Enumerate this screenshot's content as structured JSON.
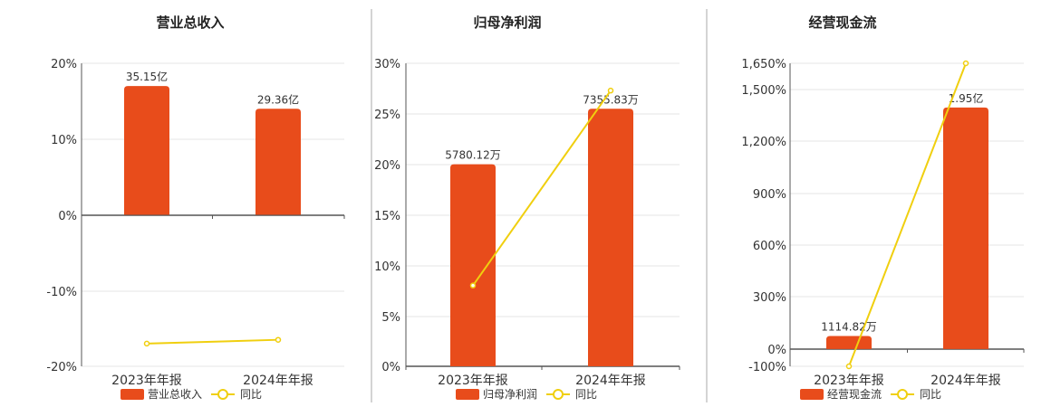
{
  "colors": {
    "bar": "#e84c1b",
    "line": "#f0cf0f",
    "axis": "#555555",
    "grid": "#e6e6e6",
    "divider": "#aaaaaa",
    "text": "#333333"
  },
  "chart_data": [
    {
      "type": "bar",
      "title": "营业总收入",
      "categories": [
        "2023年年报",
        "2024年年报"
      ],
      "series": [
        {
          "name": "营业总收入",
          "kind": "bar",
          "values": [
            0.17,
            0.14
          ],
          "value_labels": [
            "35.15亿",
            "29.36亿"
          ]
        },
        {
          "name": "同比",
          "kind": "line",
          "values": [
            -0.17,
            -0.165
          ]
        }
      ],
      "y_ticks": [
        "20%",
        "10%",
        "0%",
        "-10%",
        "-20%"
      ],
      "ylim": [
        -0.2,
        0.2
      ]
    },
    {
      "type": "bar",
      "title": "归母净利润",
      "categories": [
        "2023年年报",
        "2024年年报"
      ],
      "series": [
        {
          "name": "归母净利润",
          "kind": "bar",
          "values": [
            0.2,
            0.255
          ],
          "value_labels": [
            "5780.12万",
            "7355.83万"
          ]
        },
        {
          "name": "同比",
          "kind": "line",
          "values": [
            0.08,
            0.273
          ]
        }
      ],
      "y_ticks": [
        "30%",
        "25%",
        "20%",
        "15%",
        "10%",
        "5%",
        "0%"
      ],
      "ylim": [
        0,
        0.3
      ]
    },
    {
      "type": "bar",
      "title": "经营现金流",
      "categories": [
        "2023年年报",
        "2024年年报"
      ],
      "series": [
        {
          "name": "经营现金流",
          "kind": "bar",
          "values": [
            0.75,
            13.95
          ],
          "value_labels": [
            "1114.82万",
            "1.95亿"
          ]
        },
        {
          "name": "同比",
          "kind": "line",
          "values": [
            -1.0,
            16.5
          ]
        }
      ],
      "y_ticks": [
        "1,650%",
        "1,500%",
        "1,200%",
        "900%",
        "600%",
        "300%",
        "0%",
        "-100%"
      ],
      "ylim": [
        -1.0,
        16.5
      ]
    }
  ]
}
